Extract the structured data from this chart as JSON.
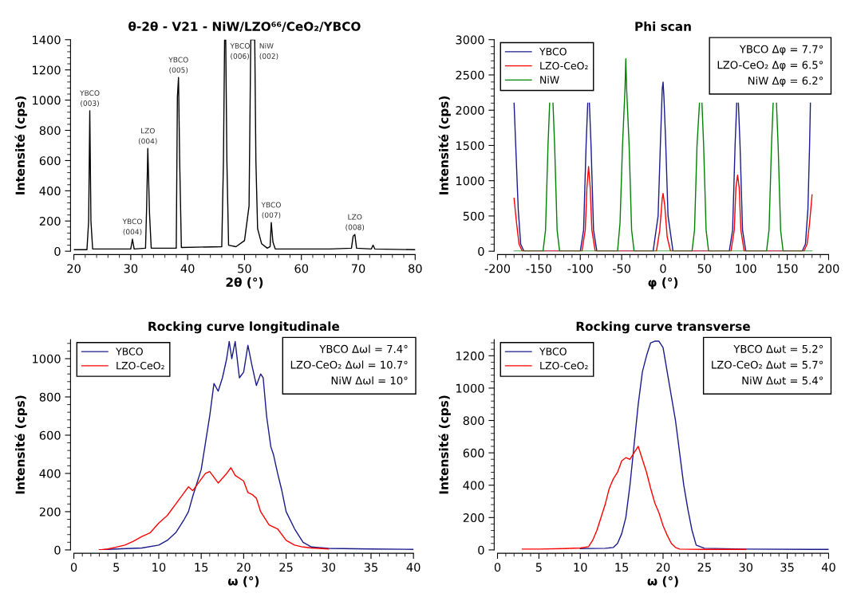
{
  "chart_data": [
    {
      "type": "line",
      "title": "θ-2θ - V21 - NiW/LZO⁶⁶/CeO₂/YBCO",
      "xlabel": "2θ (°)",
      "ylabel": "Intensité (cps)",
      "xlim": [
        20,
        80
      ],
      "ylim": [
        0,
        1400
      ],
      "xticks": [
        20,
        30,
        40,
        50,
        60,
        70,
        80
      ],
      "yticks": [
        0,
        200,
        400,
        600,
        800,
        1000,
        1200,
        1400
      ],
      "legend": false,
      "marker": "none",
      "line_style": "solid",
      "series": [
        {
          "color": "#000000",
          "x": [
            20,
            22.3,
            22.6,
            22.8,
            23.0,
            23.3,
            30.0,
            30.3,
            30.6,
            32.6,
            32.8,
            33.0,
            33.3,
            33.6,
            38.0,
            38.2,
            38.4,
            38.6,
            38.9,
            46.0,
            46.3,
            46.5,
            46.7,
            46.9,
            47.2,
            48.5,
            50.0,
            50.8,
            51.1,
            51.8,
            52.0,
            52.3,
            53.0,
            54.0,
            54.5,
            54.7,
            55.0,
            55.4,
            65,
            68.8,
            69.1,
            69.4,
            69.7,
            72.3,
            72.6,
            72.9,
            80
          ],
          "values": [
            10,
            10,
            200,
            930,
            200,
            15,
            15,
            80,
            15,
            20,
            300,
            680,
            250,
            20,
            20,
            1020,
            1150,
            600,
            25,
            30,
            600,
            1400,
            1400,
            600,
            40,
            30,
            70,
            300,
            1400,
            1400,
            600,
            150,
            50,
            20,
            30,
            190,
            60,
            15,
            15,
            20,
            100,
            110,
            20,
            15,
            40,
            15,
            10
          ]
        }
      ],
      "annotations": [
        {
          "text": "YBCO\n(003)",
          "x": 22.8,
          "y": 930
        },
        {
          "text": "YBCO\n(004)",
          "x": 30.3,
          "y": 80
        },
        {
          "text": "LZO\n(004)",
          "x": 33.0,
          "y": 680
        },
        {
          "text": "YBCO\n(005)",
          "x": 38.4,
          "y": 1150
        },
        {
          "text": "YBCO\n(006)",
          "x": 46.7,
          "y": 1400
        },
        {
          "text": "NiW\n(002)",
          "x": 51.8,
          "y": 1400
        },
        {
          "text": "YBCO\n(007)",
          "x": 54.7,
          "y": 190
        },
        {
          "text": "LZO\n(008)",
          "x": 69.4,
          "y": 110
        }
      ]
    },
    {
      "type": "line",
      "title": "Phi scan",
      "xlabel": "φ (°)",
      "ylabel": "Intensité (cps)",
      "xlim": [
        -200,
        200
      ],
      "ylim": [
        0,
        3000
      ],
      "xticks": [
        -200,
        -150,
        -100,
        -50,
        0,
        50,
        100,
        150,
        200
      ],
      "yticks": [
        0,
        500,
        1000,
        1500,
        2000,
        2500,
        3000
      ],
      "legend": "top left",
      "marker": "none",
      "line_style": "solid",
      "annotations": [
        "YBCO Δφ = 7.7°",
        "LZO-CeO₂ Δφ = 6.5°",
        "NiW Δφ = 6.2°"
      ],
      "series": [
        {
          "name": "YBCO",
          "color": "#1a1a8c",
          "x": [
            -180,
            -178,
            -175,
            -172,
            -168,
            -100,
            -96,
            -93,
            -91,
            -90,
            -89,
            -87,
            -84,
            -80,
            -12,
            -6,
            -3,
            -1,
            0,
            1,
            3,
            6,
            12,
            80,
            84,
            87,
            89,
            90,
            91,
            93,
            96,
            100,
            168,
            172,
            175,
            177,
            178
          ],
          "values": [
            2100,
            1500,
            600,
            100,
            0,
            0,
            300,
            1500,
            2100,
            null,
            2100,
            1500,
            300,
            0,
            0,
            500,
            1600,
            2300,
            2400,
            2200,
            1600,
            500,
            0,
            0,
            300,
            1500,
            2100,
            null,
            2100,
            1500,
            300,
            0,
            0,
            100,
            600,
            1500,
            2100
          ]
        },
        {
          "name": "LZO-CeO₂",
          "color": "#ff0000",
          "x": [
            -180,
            -177,
            -174,
            -170,
            -98,
            -94,
            -92,
            -90,
            -88,
            -86,
            -82,
            -8,
            -4,
            -1,
            0,
            2,
            5,
            9,
            82,
            86,
            88,
            90,
            92,
            94,
            98,
            170,
            174,
            177,
            180
          ],
          "values": [
            750,
            400,
            100,
            0,
            0,
            300,
            900,
            1200,
            900,
            300,
            0,
            0,
            300,
            750,
            820,
            650,
            200,
            0,
            0,
            300,
            900,
            1080,
            900,
            300,
            0,
            0,
            100,
            400,
            800
          ]
        },
        {
          "name": "NiW",
          "color": "#008000",
          "x": [
            -180,
            -145,
            -142,
            -139,
            -137,
            -135,
            -133,
            -131,
            -128,
            -125,
            -55,
            -52,
            -49,
            -46,
            -45,
            -44,
            -41,
            -38,
            -35,
            35,
            38,
            41,
            44,
            45,
            47,
            49,
            52,
            55,
            125,
            128,
            131,
            133,
            135,
            137,
            139,
            142,
            145,
            180
          ],
          "values": [
            0,
            0,
            300,
            1500,
            2100,
            null,
            2100,
            1500,
            300,
            0,
            0,
            400,
            1500,
            2300,
            2730,
            2300,
            1500,
            300,
            0,
            0,
            300,
            1500,
            2100,
            null,
            2100,
            1500,
            300,
            0,
            0,
            300,
            1500,
            2100,
            null,
            2100,
            1500,
            300,
            0,
            0
          ]
        }
      ]
    },
    {
      "type": "line",
      "title": "Rocking curve longitudinale",
      "xlabel": "ω (°)",
      "ylabel": "Intensité (cps)",
      "xlim": [
        0,
        40
      ],
      "ylim": [
        0,
        1100
      ],
      "xticks": [
        0,
        5,
        10,
        15,
        20,
        25,
        30,
        35,
        40
      ],
      "yticks": [
        0,
        200,
        400,
        600,
        800,
        1000
      ],
      "legend": "top left",
      "marker": "none",
      "line_style": "solid",
      "annotations": [
        "YBCO Δωl = 7.4°",
        "LZO-CeO₂ Δωl = 10.7°",
        "NiW Δωl = 10°"
      ],
      "series": [
        {
          "name": "YBCO",
          "color": "#1a1a8c",
          "x": [
            3,
            5,
            8,
            10,
            11,
            12,
            13,
            13.5,
            14,
            14.5,
            15,
            15.5,
            16,
            16.5,
            17,
            17.5,
            18,
            18.3,
            18.6,
            19,
            19.5,
            20,
            20.5,
            21,
            21.5,
            22,
            22.3,
            22.7,
            23.2,
            23.5,
            24,
            24.5,
            25,
            26,
            27,
            28,
            30,
            35,
            40
          ],
          "values": [
            0,
            5,
            10,
            25,
            50,
            90,
            160,
            200,
            280,
            350,
            420,
            560,
            700,
            870,
            830,
            900,
            1000,
            1090,
            1000,
            1090,
            900,
            930,
            1070,
            960,
            860,
            920,
            900,
            700,
            540,
            500,
            400,
            310,
            200,
            110,
            40,
            15,
            8,
            5,
            3
          ]
        },
        {
          "name": "LZO-CeO₂",
          "color": "#ff0000",
          "x": [
            3,
            4,
            5,
            6,
            7,
            8,
            9,
            10,
            11,
            12,
            13,
            13.5,
            14,
            15,
            15.5,
            16,
            17,
            18,
            18.5,
            19,
            20,
            20.5,
            21,
            21.5,
            22,
            23,
            24,
            25,
            26,
            27,
            28,
            30
          ],
          "values": [
            0,
            5,
            15,
            25,
            45,
            70,
            90,
            140,
            180,
            240,
            300,
            330,
            310,
            370,
            400,
            410,
            350,
            400,
            430,
            390,
            360,
            300,
            290,
            270,
            200,
            130,
            110,
            50,
            25,
            15,
            10,
            5
          ]
        }
      ]
    },
    {
      "type": "line",
      "title": "Rocking curve transverse",
      "xlabel": "ω (°)",
      "ylabel": "Intensité (cps)",
      "xlim": [
        0,
        40
      ],
      "ylim": [
        0,
        1300
      ],
      "xticks": [
        0,
        5,
        10,
        15,
        20,
        25,
        30,
        35,
        40
      ],
      "yticks": [
        0,
        200,
        400,
        600,
        800,
        1000,
        1200
      ],
      "legend": "top left",
      "marker": "none",
      "line_style": "solid",
      "annotations": [
        "YBCO Δωt = 5.2°",
        "LZO-CeO₂ Δωt = 5.7°",
        "NiW Δωt = 5.4°"
      ],
      "series": [
        {
          "name": "YBCO",
          "color": "#1a1a8c",
          "x": [
            10,
            13,
            14,
            14.5,
            15,
            15.5,
            16,
            16.5,
            17,
            17.5,
            18,
            18.5,
            19,
            19.5,
            20,
            20.5,
            21,
            21.5,
            22,
            22.5,
            23,
            23.5,
            24,
            25,
            30,
            40
          ],
          "values": [
            8,
            10,
            15,
            40,
            100,
            200,
            400,
            650,
            900,
            1100,
            1200,
            1280,
            1290,
            1290,
            1250,
            1100,
            950,
            800,
            600,
            400,
            250,
            120,
            30,
            10,
            5,
            3
          ]
        },
        {
          "name": "LZO-CeO₂",
          "color": "#ff0000",
          "x": [
            3,
            5,
            8,
            10,
            11,
            11.5,
            12,
            12.5,
            13,
            13.5,
            14,
            14.5,
            15,
            15.5,
            16,
            16.5,
            17,
            17.5,
            18,
            18.5,
            19,
            19.5,
            20,
            20.5,
            21,
            21.5,
            22,
            25,
            30
          ],
          "values": [
            5,
            5,
            8,
            12,
            20,
            60,
            120,
            200,
            280,
            380,
            440,
            480,
            550,
            570,
            560,
            600,
            640,
            560,
            480,
            380,
            290,
            230,
            150,
            90,
            40,
            15,
            5,
            3,
            3
          ]
        }
      ]
    }
  ]
}
